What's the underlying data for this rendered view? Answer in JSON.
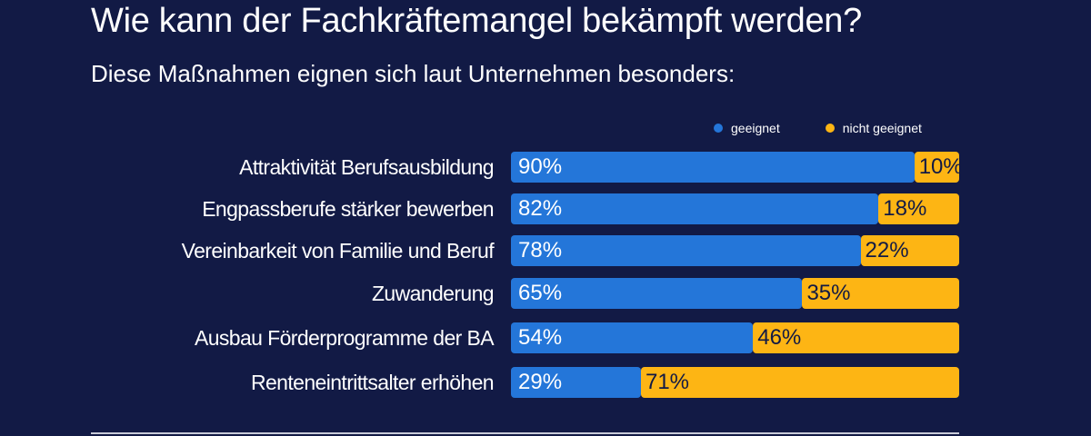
{
  "chart_data": {
    "type": "bar",
    "stacked": true,
    "orientation": "horizontal",
    "title": "Wie kann der Fachkräftemangel bekämpft werden?",
    "subtitle": "Diese Maßnahmen eignen sich laut Unternehmen besonders:",
    "categories": [
      "Attraktivität Berufsausbildung",
      "Engpassberufe stärker bewerben",
      "Vereinbarkeit von Familie und Beruf",
      "Zuwanderung",
      "Ausbau Förderprogramme der BA",
      "Renteneintrittsalter erhöhen"
    ],
    "series": [
      {
        "name": "geeignet",
        "color": "#2476d9",
        "values": [
          90,
          82,
          78,
          65,
          54,
          29
        ],
        "labels": [
          "90%",
          "82%",
          "78%",
          "65%",
          "54%",
          "29%"
        ]
      },
      {
        "name": "nicht geeignet",
        "color": "#fdb514",
        "values": [
          10,
          18,
          22,
          35,
          46,
          71
        ],
        "labels": [
          "10%",
          "18%",
          "22%",
          "35%",
          "46%",
          "71%"
        ]
      }
    ],
    "xlim": [
      0,
      100
    ],
    "legend": "top-right",
    "grid": false
  }
}
